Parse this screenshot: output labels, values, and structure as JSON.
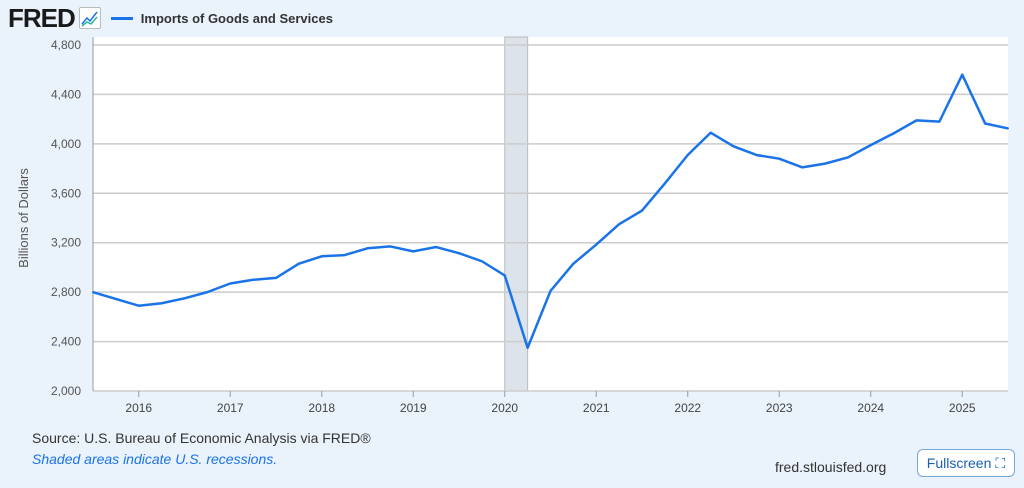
{
  "header": {
    "logo": "FRED",
    "legend": "Imports of Goods and Services"
  },
  "chart_data": {
    "type": "line",
    "title": "Imports of Goods and Services",
    "ylabel": "Billions of Dollars",
    "xlabel": "",
    "ylim": [
      2000,
      4800
    ],
    "yticks": [
      "2,000",
      "2,400",
      "2,800",
      "3,200",
      "3,600",
      "4,000",
      "4,400",
      "4,800"
    ],
    "ytick_values": [
      2000,
      2400,
      2800,
      3200,
      3600,
      4000,
      4400,
      4800
    ],
    "xticks": [
      "2016",
      "2017",
      "2018",
      "2019",
      "2020",
      "2021",
      "2022",
      "2023",
      "2024",
      "2025"
    ],
    "xlim": [
      2015.5,
      2025.5
    ],
    "recessions": [
      [
        2020.0,
        2020.25
      ]
    ],
    "grid": true,
    "series": [
      {
        "name": "Imports of Goods and Services",
        "color": "#1a73e8",
        "x": [
          2015.5,
          2015.75,
          2016,
          2016.25,
          2016.5,
          2016.75,
          2017,
          2017.25,
          2017.5,
          2017.75,
          2018,
          2018.25,
          2018.5,
          2018.75,
          2019,
          2019.25,
          2019.5,
          2019.75,
          2020,
          2020.25,
          2020.5,
          2020.75,
          2021,
          2021.25,
          2021.5,
          2021.75,
          2022,
          2022.25,
          2022.5,
          2022.75,
          2023,
          2023.25,
          2023.5,
          2023.75,
          2024,
          2024.25,
          2024.5,
          2024.75,
          2025,
          2025.25,
          2025.5
        ],
        "values": [
          2800,
          2745,
          2690,
          2710,
          2750,
          2800,
          2870,
          2900,
          2915,
          3030,
          3090,
          3100,
          3155,
          3170,
          3130,
          3165,
          3115,
          3050,
          2935,
          2350,
          2810,
          3030,
          3185,
          3350,
          3460,
          3680,
          3910,
          4090,
          3980,
          3910,
          3880,
          3810,
          3840,
          3890,
          3990,
          4085,
          4190,
          4180,
          4560,
          4165,
          4125
        ]
      }
    ]
  },
  "footer": {
    "source": "Source: U.S. Bureau of Economic Analysis via FRED®",
    "recession_note": "Shaded areas indicate U.S. recessions.",
    "site": "fred.stlouisfed.org",
    "fullscreen": "Fullscreen"
  },
  "colors": {
    "line": "#1a73e8",
    "recession": "#dde3ea"
  }
}
